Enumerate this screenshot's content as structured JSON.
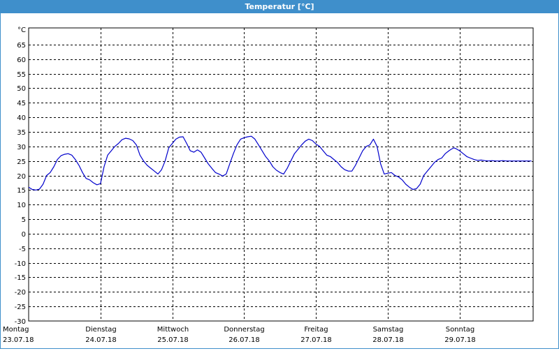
{
  "title": "Temperatur [°C]",
  "colors": {
    "title_bg": "#3f8fcb",
    "line": "#0000cc",
    "grid": "#000000",
    "frame": "#000000"
  },
  "chart_data": {
    "type": "line",
    "title": "Temperatur [°C]",
    "ylabel_unit": "°C",
    "ylim": [
      -30,
      70
    ],
    "xlim": [
      0,
      7
    ],
    "y_ticks": [
      65,
      60,
      55,
      50,
      45,
      40,
      35,
      30,
      25,
      20,
      15,
      10,
      5,
      0,
      -5,
      -10,
      -15,
      -20,
      -25,
      -30
    ],
    "grid": true,
    "x_ticks": [
      {
        "x": 0,
        "day": "Montag",
        "date": "23.07.18"
      },
      {
        "x": 1,
        "day": "Dienstag",
        "date": "24.07.18"
      },
      {
        "x": 2,
        "day": "Mittwoch",
        "date": "25.07.18"
      },
      {
        "x": 3,
        "day": "Donnerstag",
        "date": "26.07.18"
      },
      {
        "x": 4,
        "day": "Freitag",
        "date": "27.07.18"
      },
      {
        "x": 5,
        "day": "Samstag",
        "date": "28.07.18"
      },
      {
        "x": 6,
        "day": "Sonntag",
        "date": "29.07.18"
      }
    ],
    "series": [
      {
        "x": [
          0,
          0.05,
          0.1,
          0.15,
          0.2,
          0.25,
          0.3,
          0.35,
          0.4,
          0.45,
          0.5,
          0.55,
          0.6,
          0.65,
          0.7,
          0.75,
          0.8,
          0.85,
          0.9,
          0.95,
          1.0,
          1.05,
          1.1,
          1.15,
          1.2,
          1.25,
          1.3,
          1.35,
          1.4,
          1.45,
          1.5,
          1.55,
          1.6,
          1.65,
          1.7,
          1.75,
          1.8,
          1.85,
          1.9,
          1.95,
          2.0,
          2.05,
          2.1,
          2.15,
          2.2,
          2.25,
          2.3,
          2.35,
          2.4,
          2.45,
          2.5,
          2.55,
          2.6,
          2.65,
          2.7,
          2.75,
          2.8,
          2.85,
          2.9,
          2.95,
          3.0,
          3.05,
          3.1,
          3.15,
          3.2,
          3.25,
          3.3,
          3.35,
          3.4,
          3.45,
          3.5,
          3.55,
          3.6,
          3.65,
          3.7,
          3.75,
          3.8,
          3.85,
          3.9,
          3.95,
          4.0,
          4.05,
          4.1,
          4.15,
          4.2,
          4.25,
          4.3,
          4.35,
          4.4,
          4.45,
          4.5,
          4.55,
          4.6,
          4.65,
          4.7,
          4.75,
          4.8,
          4.85,
          4.9,
          4.95,
          5.0,
          5.05,
          5.1,
          5.15,
          5.2,
          5.25,
          5.3,
          5.35,
          5.4,
          5.45,
          5.5,
          5.55,
          5.6,
          5.65,
          5.7,
          5.75,
          5.8,
          5.85,
          5.88,
          5.92,
          5.95,
          6.0,
          6.05,
          6.1,
          6.15,
          6.2,
          6.25,
          6.3,
          6.35,
          6.4,
          6.45,
          6.5,
          6.55,
          6.6,
          6.65,
          6.7,
          6.75,
          6.8,
          6.85,
          6.9,
          6.95,
          7.0
        ],
        "y": [
          16,
          15.2,
          15,
          15.3,
          17,
          20,
          21,
          23,
          25.5,
          26.8,
          27.3,
          27.5,
          27,
          25.5,
          23.5,
          21,
          19,
          18.5,
          17.5,
          16.8,
          17.2,
          23,
          27,
          28.5,
          30,
          31,
          32.3,
          32.8,
          32.6,
          32,
          30.5,
          27,
          25,
          23.5,
          22.5,
          21.5,
          20.5,
          22,
          25,
          29.5,
          31,
          32.5,
          33.2,
          33.3,
          31,
          28.5,
          28,
          28.8,
          28,
          26,
          24,
          22.5,
          21,
          20.5,
          19.8,
          20.5,
          24,
          27.5,
          30.5,
          32.5,
          33,
          33.3,
          33.5,
          32.5,
          30.5,
          28.5,
          26.5,
          25,
          23,
          21.8,
          21,
          20.5,
          22.5,
          25,
          27.5,
          29,
          30.5,
          31.8,
          32.5,
          32,
          30.8,
          30,
          28.5,
          27,
          26.5,
          25.5,
          24.5,
          23,
          22,
          21.5,
          21.5,
          23.5,
          26,
          28.5,
          30,
          30.5,
          32.5,
          30,
          24,
          20.5,
          20.8,
          21,
          20,
          19.5,
          18.5,
          17,
          16,
          15.2,
          15.5,
          17,
          20,
          21.5,
          23,
          24.5,
          25.5,
          26,
          27.5,
          28.5,
          29,
          29.5,
          29.2,
          28.5,
          27.5,
          26.5,
          26,
          25.5,
          25.2,
          25.3,
          25.1,
          25.0,
          25.1,
          25.0,
          25.0,
          25.1,
          25.0,
          25.0,
          25.0,
          25.0,
          25.0,
          25.0,
          25.0,
          25.0
        ]
      }
    ]
  }
}
